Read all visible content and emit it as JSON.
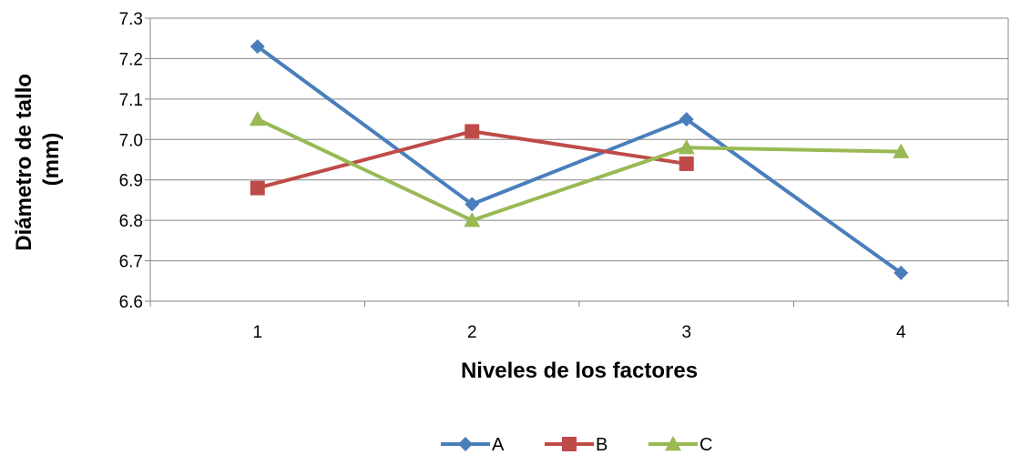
{
  "chart_data": {
    "type": "line",
    "title": "",
    "xlabel": "Niveles de los factores",
    "ylabel": [
      "Diámetro de tallo",
      "(mm)"
    ],
    "categories": [
      "1",
      "2",
      "3",
      "4"
    ],
    "ylim": [
      6.6,
      7.3
    ],
    "yticks": [
      "6.6",
      "6.7",
      "6.8",
      "6.9",
      "7.0",
      "7.1",
      "7.2",
      "7.3"
    ],
    "grid": true,
    "legend_position": "bottom",
    "series": [
      {
        "name": "A",
        "values": [
          7.23,
          6.84,
          7.05,
          6.67
        ],
        "color": "#4a7ebb",
        "marker": "diamond"
      },
      {
        "name": "B",
        "values": [
          6.88,
          7.02,
          6.94,
          null
        ],
        "color": "#be4b48",
        "marker": "square"
      },
      {
        "name": "C",
        "values": [
          7.05,
          6.8,
          6.98,
          6.97
        ],
        "color": "#98b954",
        "marker": "triangle"
      }
    ]
  }
}
